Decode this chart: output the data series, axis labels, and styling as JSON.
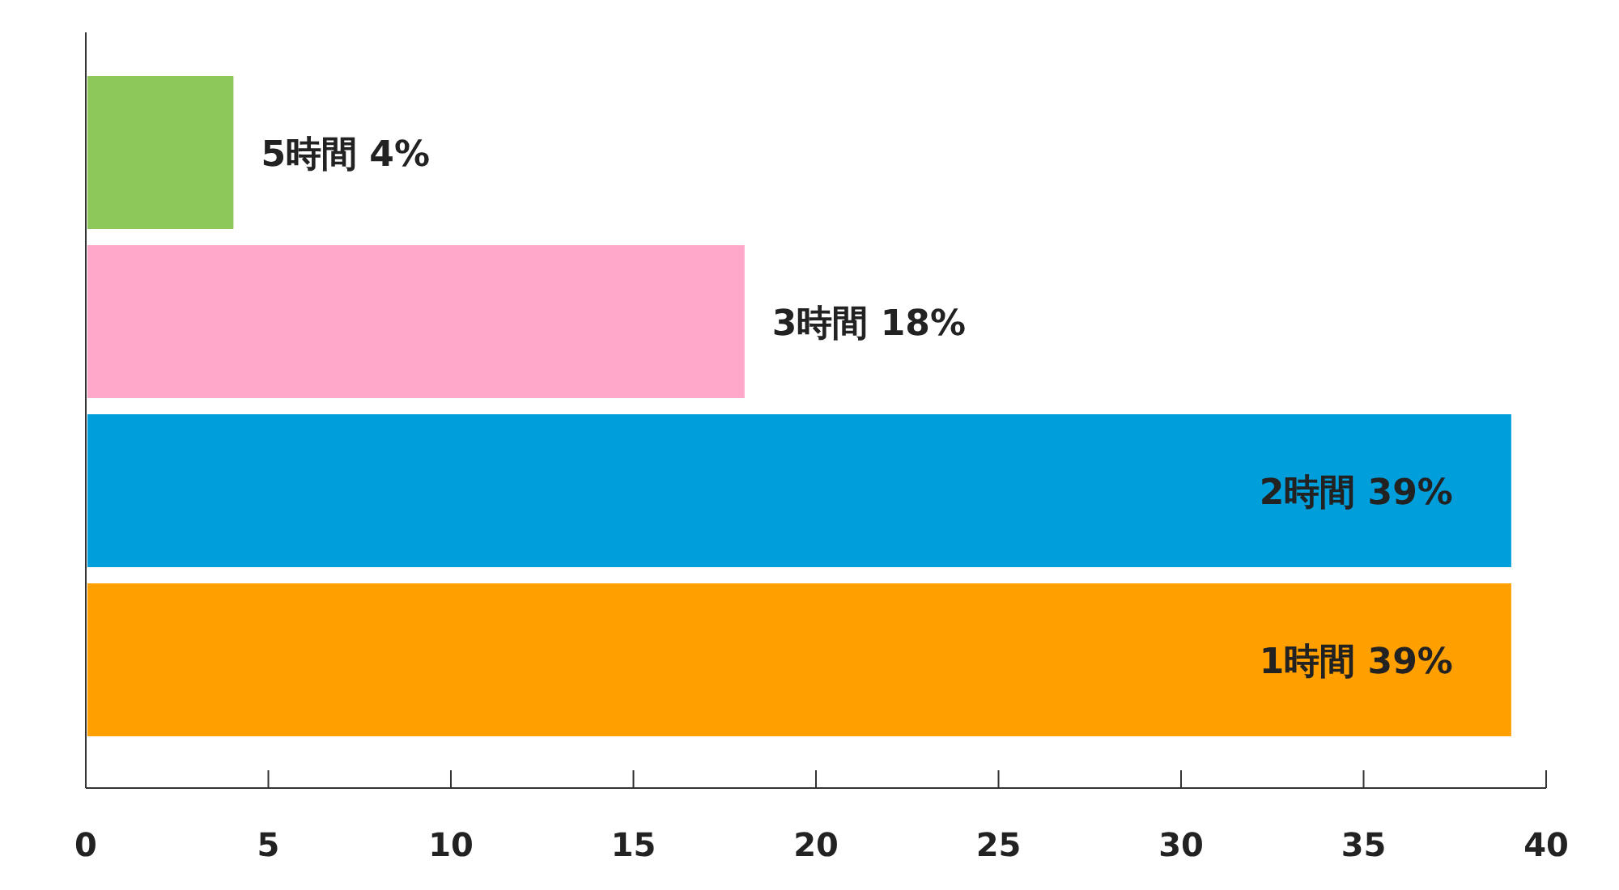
{
  "chart_data": {
    "type": "bar",
    "orientation": "horizontal",
    "categories": [
      null,
      null,
      null,
      null
    ],
    "values": [
      4,
      18,
      39,
      39
    ],
    "colors": [
      "#8cc85a",
      "#ffa8c9",
      "#009fdb",
      "#ff9f00"
    ],
    "value_labels": [
      "5時間 4%",
      "3時間 18%",
      "2時間 39%",
      "1時間 39%"
    ],
    "xlim": [
      0,
      40
    ],
    "xticks": [
      0,
      5,
      10,
      15,
      20,
      25,
      30,
      35,
      40
    ]
  }
}
